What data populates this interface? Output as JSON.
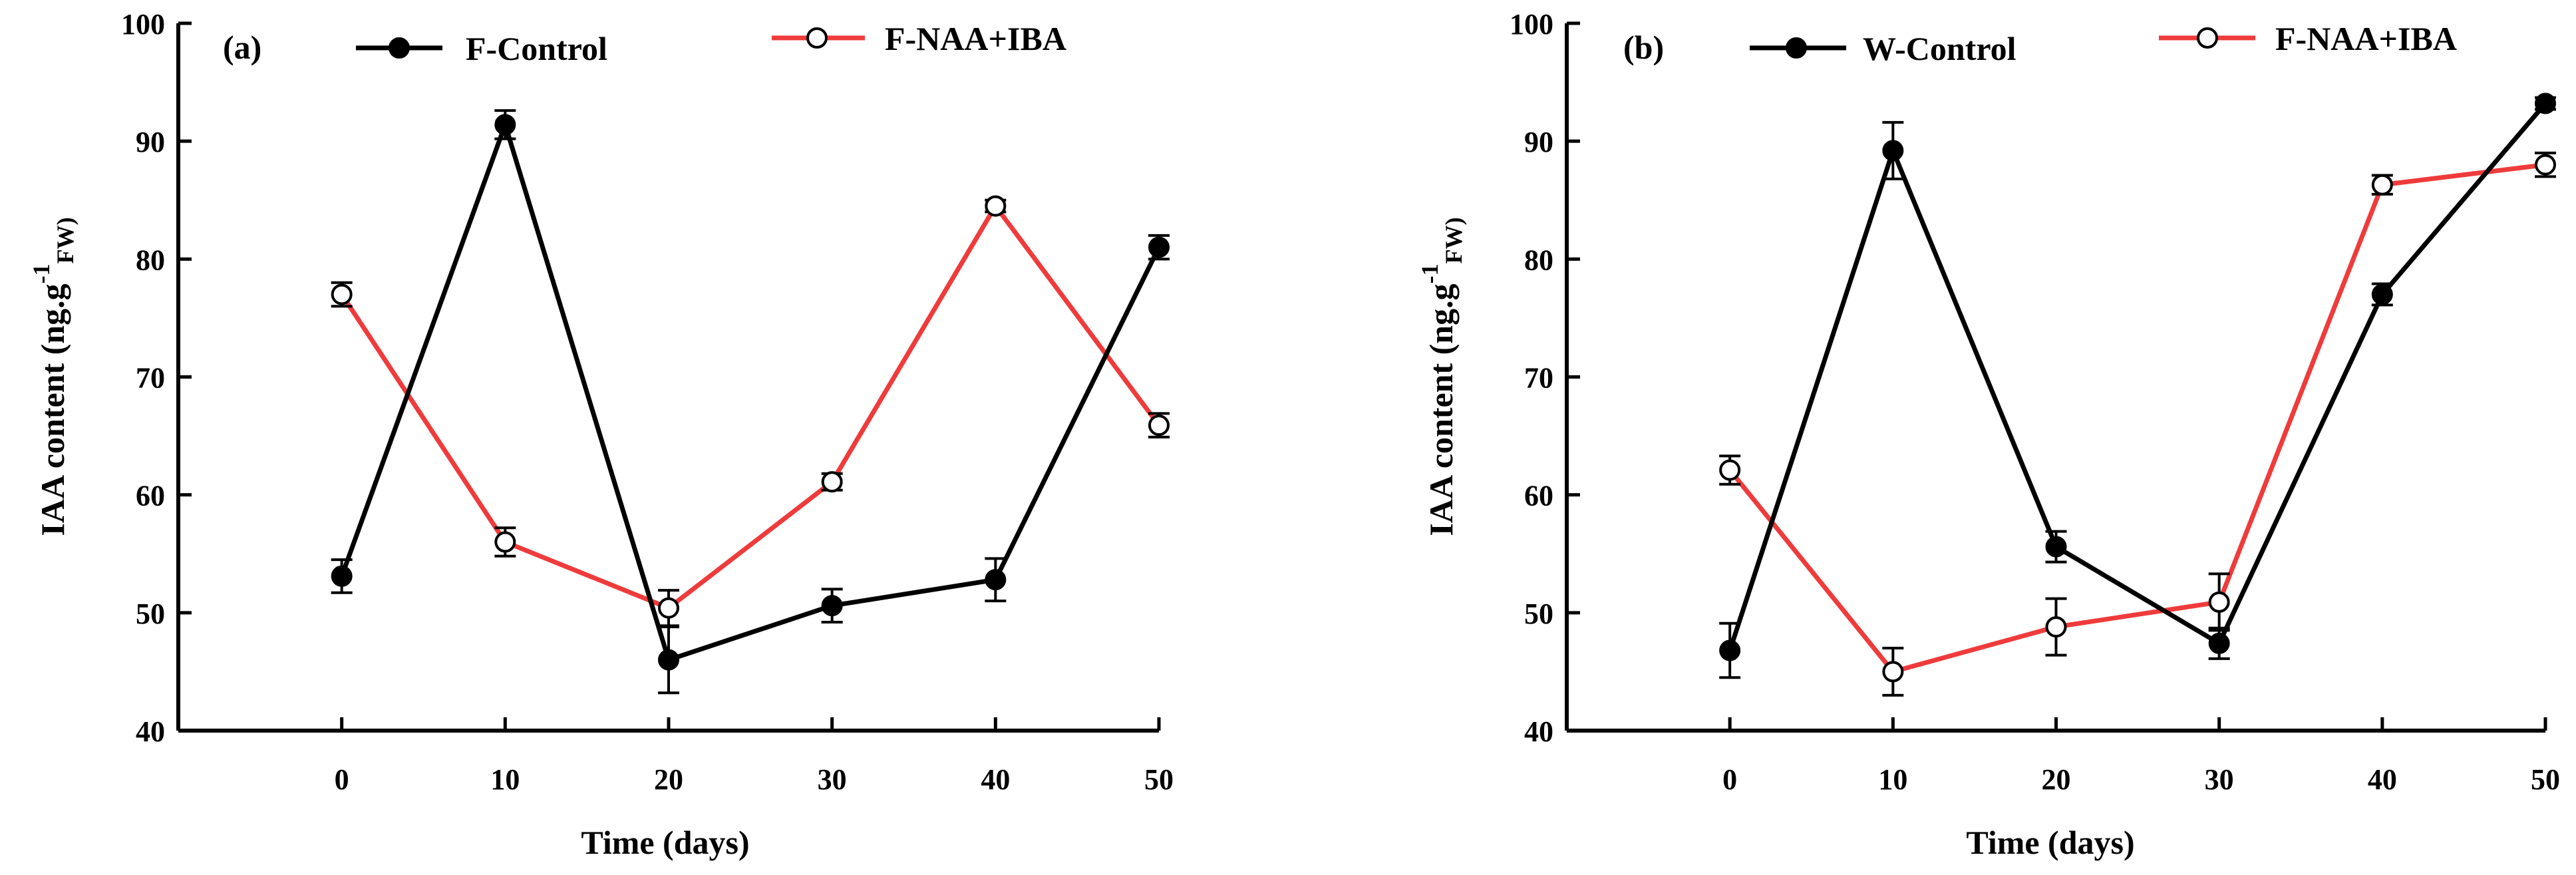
{
  "chart_data": [
    {
      "type": "line",
      "panel_label": "(a)",
      "xlabel": "Time (days)",
      "ylabel_main": "IAA content (ng.g",
      "ylabel_sup": "-1",
      "ylabel_sub": "FW)",
      "ylim": [
        40,
        100
      ],
      "xlim": [
        -10,
        50
      ],
      "x_ticks": [
        0,
        10,
        20,
        30,
        40,
        50
      ],
      "y_ticks": [
        40,
        50,
        60,
        70,
        80,
        90,
        100
      ],
      "legend_position": "top",
      "series": [
        {
          "name": "F-Control",
          "color": "#000000",
          "marker": "filled-circle",
          "x": [
            0,
            10,
            20,
            30,
            40,
            50
          ],
          "values": [
            53.1,
            91.4,
            46.0,
            50.6,
            52.8,
            81.0
          ],
          "errors": [
            1.4,
            1.2,
            2.8,
            1.4,
            1.8,
            1.0
          ]
        },
        {
          "name": "F-NAA+IBA",
          "color": "#ef3b3b",
          "marker": "open-circle",
          "x": [
            0,
            10,
            20,
            30,
            40,
            50
          ],
          "values": [
            77.0,
            56.0,
            50.4,
            61.1,
            84.5,
            65.9
          ],
          "errors": [
            1.0,
            1.2,
            1.5,
            0.7,
            0.5,
            1.0
          ]
        }
      ]
    },
    {
      "type": "line",
      "panel_label": "(b)",
      "xlabel": "Time (days)",
      "ylabel_main": "IAA content (ng.g",
      "ylabel_sup": "-1",
      "ylabel_sub": "FW)",
      "ylim": [
        40,
        100
      ],
      "xlim": [
        -10,
        50
      ],
      "x_ticks": [
        0,
        10,
        20,
        30,
        40,
        50
      ],
      "y_ticks": [
        40,
        50,
        60,
        70,
        80,
        90,
        100
      ],
      "legend_position": "top",
      "series": [
        {
          "name": "W-Control",
          "color": "#000000",
          "marker": "filled-circle",
          "x": [
            0,
            10,
            20,
            30,
            40,
            50
          ],
          "values": [
            46.8,
            89.2,
            55.6,
            47.4,
            77.0,
            93.2
          ],
          "errors": [
            2.3,
            2.4,
            1.3,
            1.3,
            0.9,
            0.5
          ]
        },
        {
          "name": "F-NAA+IBA",
          "color": "#ef3b3b",
          "marker": "open-circle",
          "x": [
            0,
            10,
            20,
            30,
            40,
            50
          ],
          "values": [
            62.1,
            45.0,
            48.8,
            50.9,
            86.3,
            88.0
          ],
          "errors": [
            1.2,
            2.0,
            2.4,
            2.4,
            0.8,
            1.0
          ]
        }
      ]
    }
  ]
}
